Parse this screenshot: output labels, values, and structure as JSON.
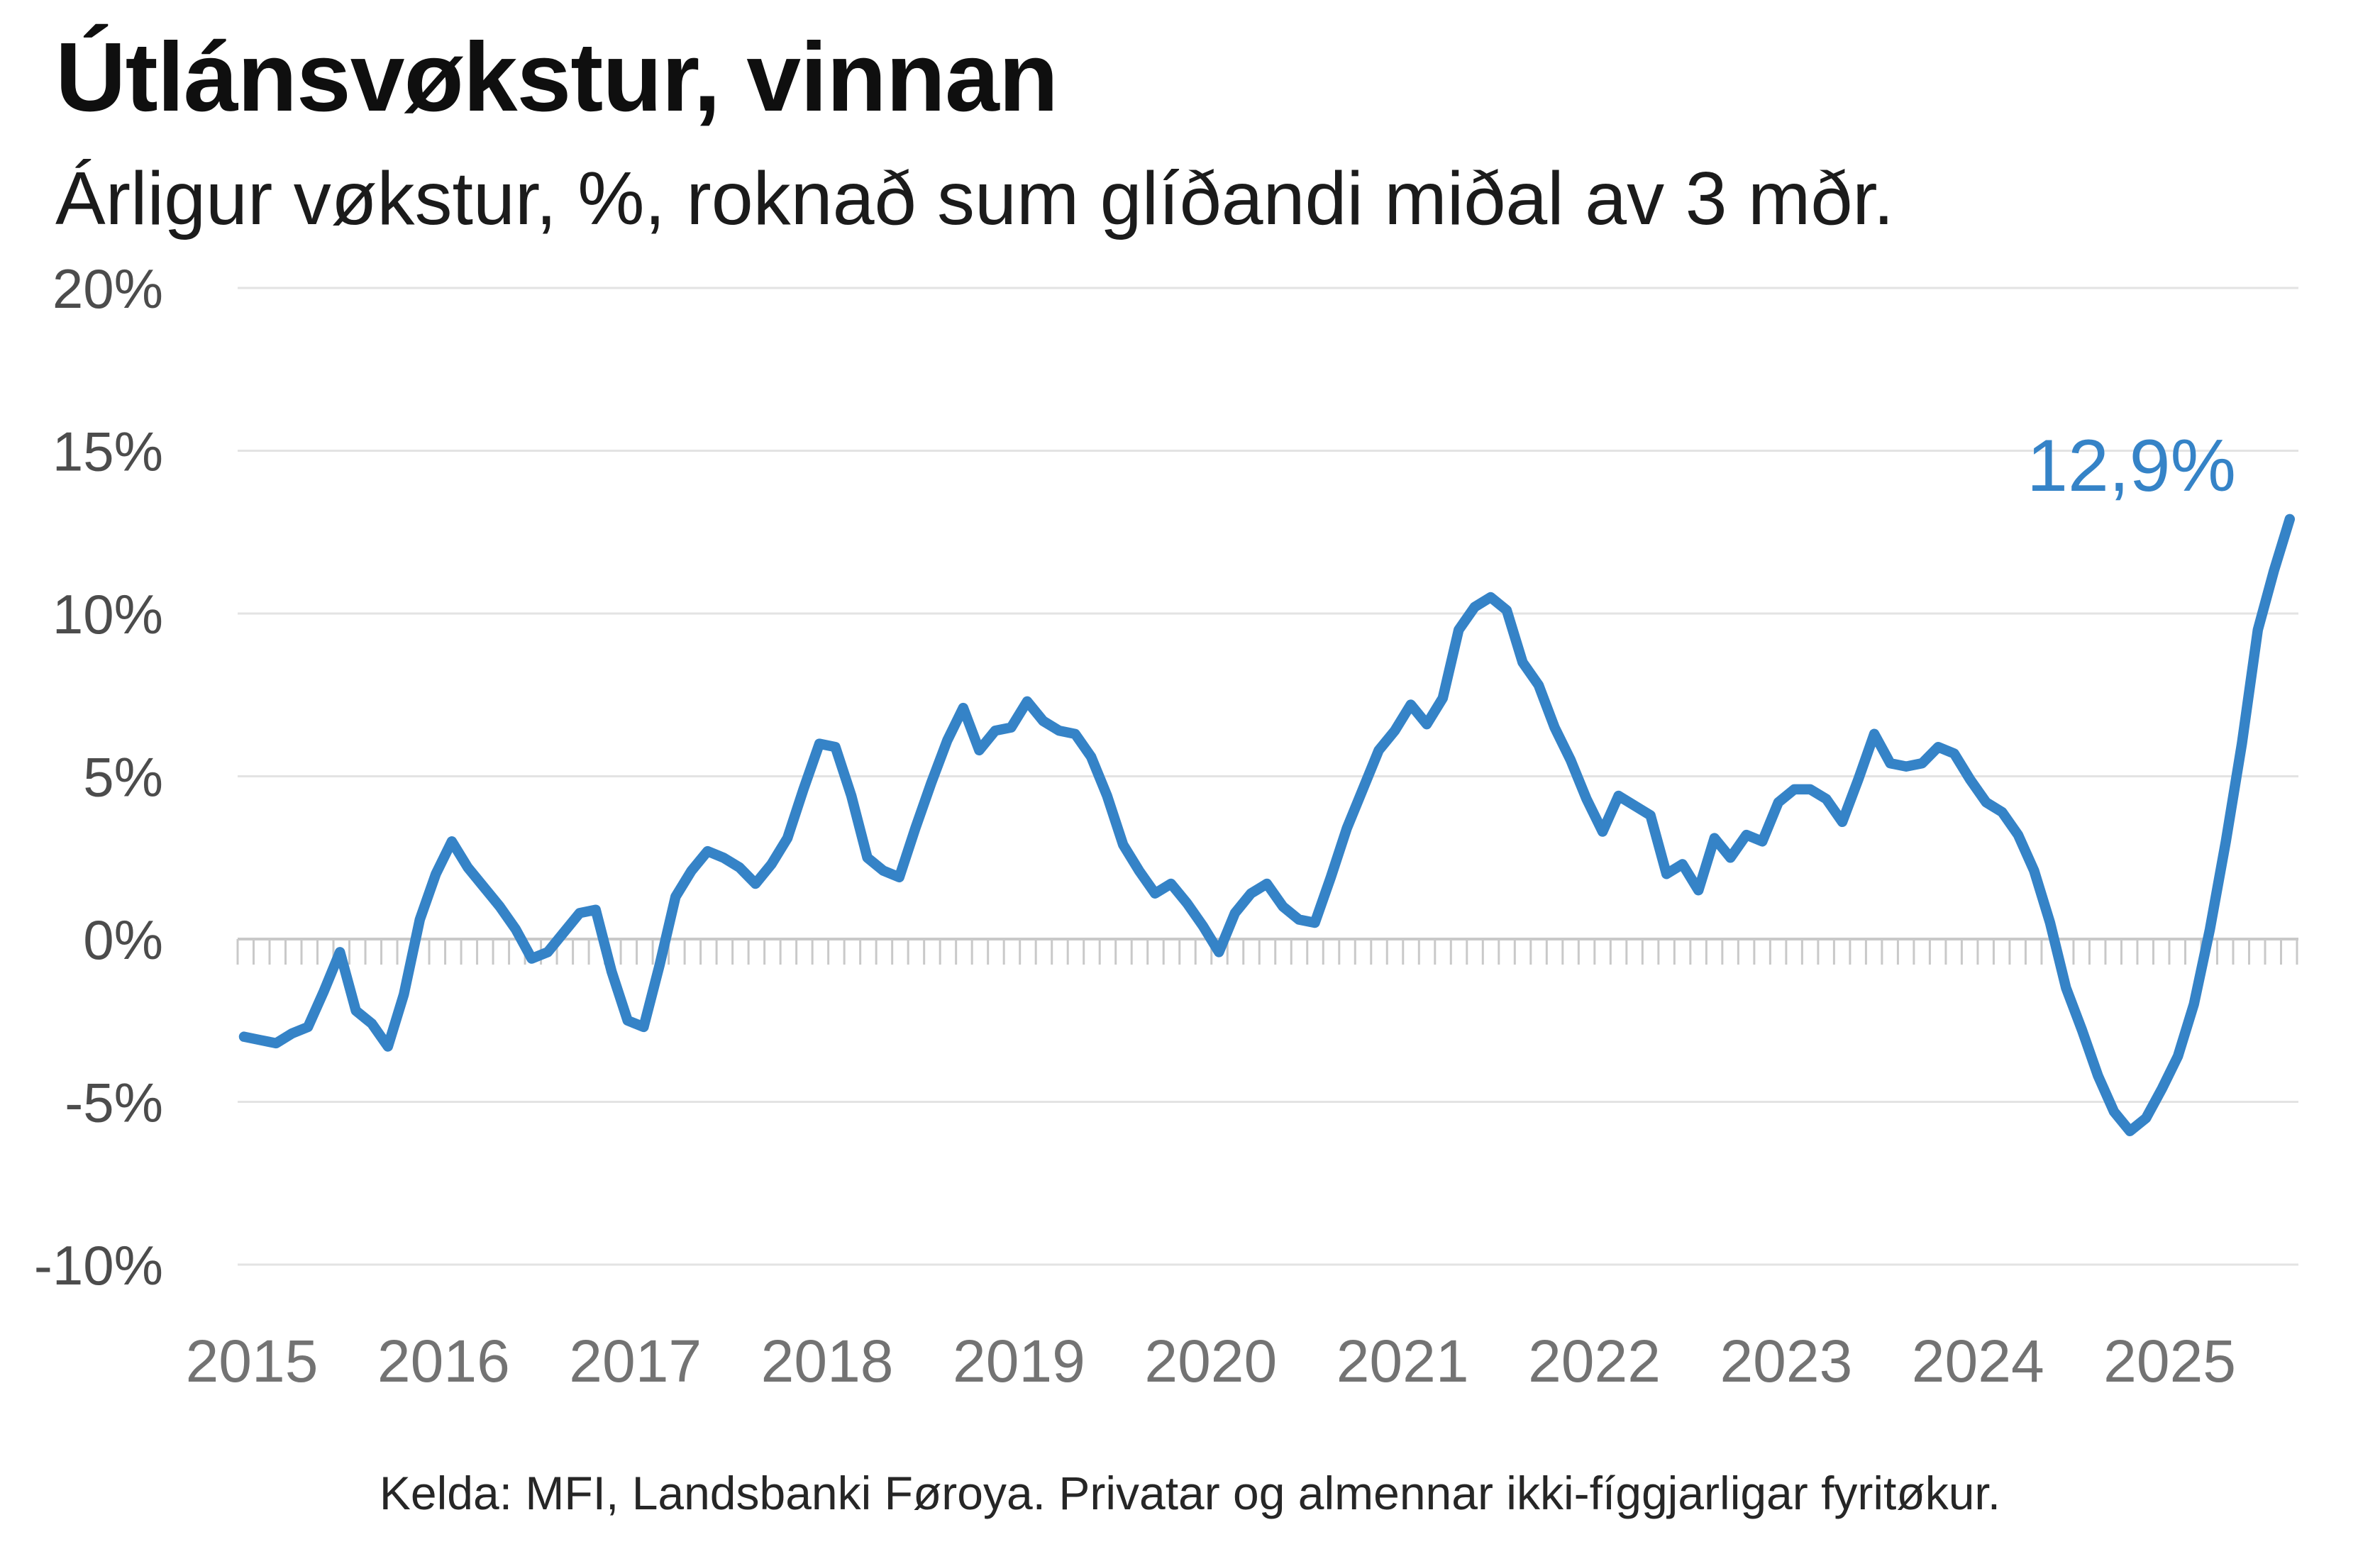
{
  "header": {
    "title": "Útlánsvøkstur, vinnan",
    "subtitle": "Árligur vøkstur, %, roknað sum glíðandi miðal av 3 mðr."
  },
  "annotation": {
    "end_value_label": "12,9%"
  },
  "footer": {
    "source": "Kelda: MFI, Landsbanki Føroya. Privatar og almennar ikki-fíggjarligar fyritøkur."
  },
  "colors": {
    "line": "#3583c7",
    "annotation": "#3583c7",
    "gridline": "#e3e3e3",
    "zero_axis": "#c9c9c9",
    "y_label": "#4c4c4c",
    "x_label": "#737373"
  },
  "chart_data": {
    "type": "line",
    "title": "Útlánsvøkstur, vinnan",
    "subtitle": "Árligur vøkstur, %, roknað sum glíðandi miðal av 3 mðr.",
    "unit": "%",
    "frequency": "monthly",
    "start": "2015-01",
    "end": "2025-09",
    "ylim": [
      -10,
      20
    ],
    "grid": "horizontal-only",
    "legend": "none",
    "zero_axis_month_ticks": true,
    "end_label": "12,9%",
    "last_value": 12.9,
    "y_ticks": [
      {
        "value": 20,
        "label": "20%"
      },
      {
        "value": 15,
        "label": "15%"
      },
      {
        "value": 10,
        "label": "10%"
      },
      {
        "value": 5,
        "label": "5%"
      },
      {
        "value": 0,
        "label": "0%"
      },
      {
        "value": -5,
        "label": "-5%"
      },
      {
        "value": -10,
        "label": "-10%"
      }
    ],
    "x_tick_years": [
      {
        "year": 2015,
        "label": "2015"
      },
      {
        "year": 2016,
        "label": "2016"
      },
      {
        "year": 2017,
        "label": "2017"
      },
      {
        "year": 2018,
        "label": "2018"
      },
      {
        "year": 2019,
        "label": "2019"
      },
      {
        "year": 2020,
        "label": "2020"
      },
      {
        "year": 2021,
        "label": "2021"
      },
      {
        "year": 2022,
        "label": "2022"
      },
      {
        "year": 2023,
        "label": "2023"
      },
      {
        "year": 2024,
        "label": "2024"
      },
      {
        "year": 2025,
        "label": "2025"
      }
    ],
    "series": [
      {
        "name": "Útlánsvøkstur, vinnan",
        "color": "#3583c7",
        "values": [
          -3.0,
          -3.1,
          -3.2,
          -2.9,
          -2.7,
          -1.6,
          -0.4,
          -2.2,
          -2.6,
          -3.3,
          -1.7,
          0.6,
          2.0,
          3.0,
          2.2,
          1.6,
          1.0,
          0.3,
          -0.6,
          -0.4,
          0.2,
          0.8,
          0.9,
          -1.0,
          -2.5,
          -2.7,
          -0.8,
          1.3,
          2.1,
          2.7,
          2.5,
          2.2,
          1.7,
          2.3,
          3.1,
          4.6,
          6.0,
          5.9,
          4.4,
          2.5,
          2.1,
          1.9,
          3.4,
          4.8,
          6.1,
          7.1,
          5.8,
          6.4,
          6.5,
          7.3,
          6.7,
          6.4,
          6.3,
          5.6,
          4.4,
          2.9,
          2.1,
          1.4,
          1.7,
          1.1,
          0.4,
          -0.4,
          0.8,
          1.4,
          1.7,
          1.0,
          0.6,
          0.5,
          1.9,
          3.4,
          4.6,
          5.8,
          6.4,
          7.2,
          6.6,
          7.4,
          9.5,
          10.2,
          10.5,
          10.1,
          8.5,
          7.8,
          6.5,
          5.5,
          4.3,
          3.3,
          4.4,
          4.1,
          3.8,
          2.0,
          2.3,
          1.5,
          3.1,
          2.5,
          3.2,
          3.0,
          4.2,
          4.6,
          4.6,
          4.3,
          3.6,
          4.9,
          6.3,
          5.4,
          5.3,
          5.4,
          5.9,
          5.7,
          4.9,
          4.2,
          3.9,
          3.2,
          2.1,
          0.5,
          -1.5,
          -2.8,
          -4.2,
          -5.3,
          -5.9,
          -5.5,
          -4.6,
          -3.6,
          -2.0,
          0.3,
          3.0,
          6.0,
          9.5,
          11.3,
          12.9
        ]
      }
    ]
  }
}
